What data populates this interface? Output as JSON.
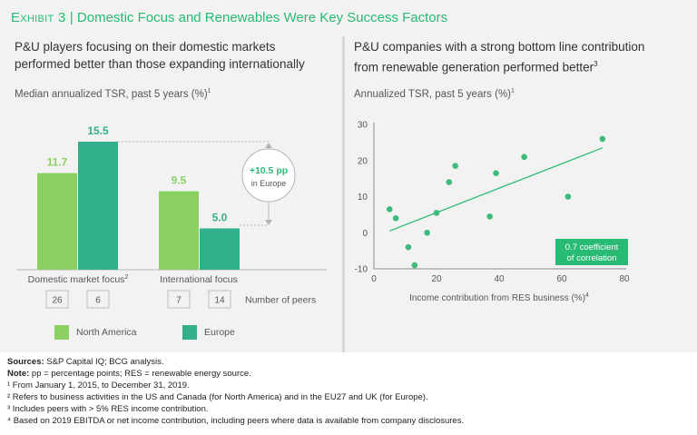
{
  "exhibit": {
    "label": "Exhibit 3",
    "separator": "|",
    "title": "Domestic Focus and Renewables Were Key Success Factors"
  },
  "left": {
    "heading_line1": "P&U players focusing on their domestic markets",
    "heading_line2": "performed better than those expanding internationally",
    "subtitle": "Median annualized TSR, past 5 years (%)",
    "subtitle_note": "1"
  },
  "right": {
    "heading_line1": "P&U companies with a strong bottom line contribution",
    "heading_line2": "from renewable generation performed better",
    "heading_note": "3",
    "subtitle": "Annualized TSR, past 5 years (%)",
    "subtitle_note": "1"
  },
  "legend": {
    "north_america": "North America",
    "europe": "Europe"
  },
  "colors": {
    "north_america": "#8cd063",
    "europe": "#32b08c",
    "accent": "#29ba74",
    "scatter": "#3cbb7a"
  },
  "chart_data": [
    {
      "type": "bar",
      "title": "Median annualized TSR, past 5 years (%)",
      "categories": [
        "Domestic market focus",
        "International focus"
      ],
      "category_notes": [
        "2",
        ""
      ],
      "series": [
        {
          "name": "North America",
          "values": [
            11.7,
            9.5
          ],
          "value_labels": [
            "11.7",
            "9.5"
          ],
          "peers": [
            26,
            7
          ],
          "peer_labels": [
            "26",
            "7"
          ]
        },
        {
          "name": "Europe",
          "values": [
            15.5,
            5.0
          ],
          "value_labels": [
            "15.5",
            "5.0"
          ],
          "peers": [
            6,
            14
          ],
          "peer_labels": [
            "6",
            "14"
          ]
        }
      ],
      "peers_label": "Number of peers",
      "annotation": {
        "line1": "+10.5 pp",
        "line2": "in Europe",
        "value": 10.5
      },
      "ylim": [
        0,
        17
      ]
    },
    {
      "type": "scatter",
      "title": "Annualized TSR, past 5 years (%)",
      "xlabel": "Income contribution from RES business (%)",
      "xlabel_note": "4",
      "ylabel": "Annualized TSR, past 5 years (%)",
      "xlim": [
        0,
        80
      ],
      "ylim": [
        -10,
        30
      ],
      "xticks": [
        0,
        20,
        40,
        60,
        80
      ],
      "yticks": [
        30,
        20,
        10,
        0,
        -10
      ],
      "points": [
        {
          "x": 5,
          "y": 6.5
        },
        {
          "x": 7,
          "y": 4
        },
        {
          "x": 11,
          "y": -4
        },
        {
          "x": 13,
          "y": -9
        },
        {
          "x": 17,
          "y": 0
        },
        {
          "x": 20,
          "y": 5.5
        },
        {
          "x": 24,
          "y": 14
        },
        {
          "x": 26,
          "y": 18.5
        },
        {
          "x": 37,
          "y": 4.5
        },
        {
          "x": 39,
          "y": 16.5
        },
        {
          "x": 48,
          "y": 21
        },
        {
          "x": 62,
          "y": 10
        },
        {
          "x": 73,
          "y": 26
        }
      ],
      "trendline": {
        "x": [
          5,
          73
        ],
        "y": [
          0.5,
          23.5
        ]
      },
      "annotation": {
        "line1": "0.7 coefficient",
        "line2": "of correlation",
        "value": 0.7
      }
    }
  ],
  "footnotes": {
    "sources_label": "Sources:",
    "sources_text": "S&P Capital IQ; BCG analysis.",
    "note_label": "Note:",
    "note_text": "pp = percentage points; RES = renewable energy source.",
    "fn1": "¹ From January 1, 2015, to December 31, 2019.",
    "fn2": "² Refers to business activities in the US and Canada (for North America) and in the EU27 and UK (for Europe).",
    "fn3": "³ Includes peers with > 5% RES income contribution.",
    "fn4": "⁴ Based on 2019 EBITDA or net income contribution, including peers where data is available from company disclosures."
  }
}
